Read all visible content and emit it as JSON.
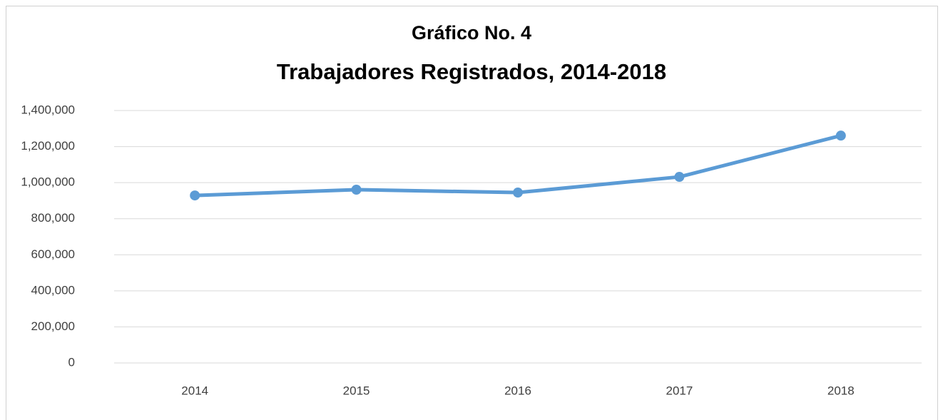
{
  "chart_data": {
    "type": "line",
    "title": "Gráfico No. 4",
    "subtitle": "Trabajadores Registrados, 2014-2018",
    "categories": [
      "2014",
      "2015",
      "2016",
      "2017",
      "2018"
    ],
    "values": [
      929000,
      961000,
      945000,
      1032000,
      1261000
    ],
    "color": "#5b9bd5",
    "ylim": [
      0,
      1400000
    ],
    "yticks": [
      0,
      {
        "value": 200000,
        "label": "200,000"
      },
      {
        "value": 400000,
        "label": "400,000"
      },
      {
        "value": 600000,
        "label": "600,000"
      },
      {
        "value": 800000,
        "label": "800,000"
      },
      {
        "value": 1000000,
        "label": "1,000,000"
      },
      {
        "value": 1200000,
        "label": "1,200,000"
      },
      {
        "value": 1400000,
        "label": "1,400,000"
      }
    ],
    "grid": true
  }
}
